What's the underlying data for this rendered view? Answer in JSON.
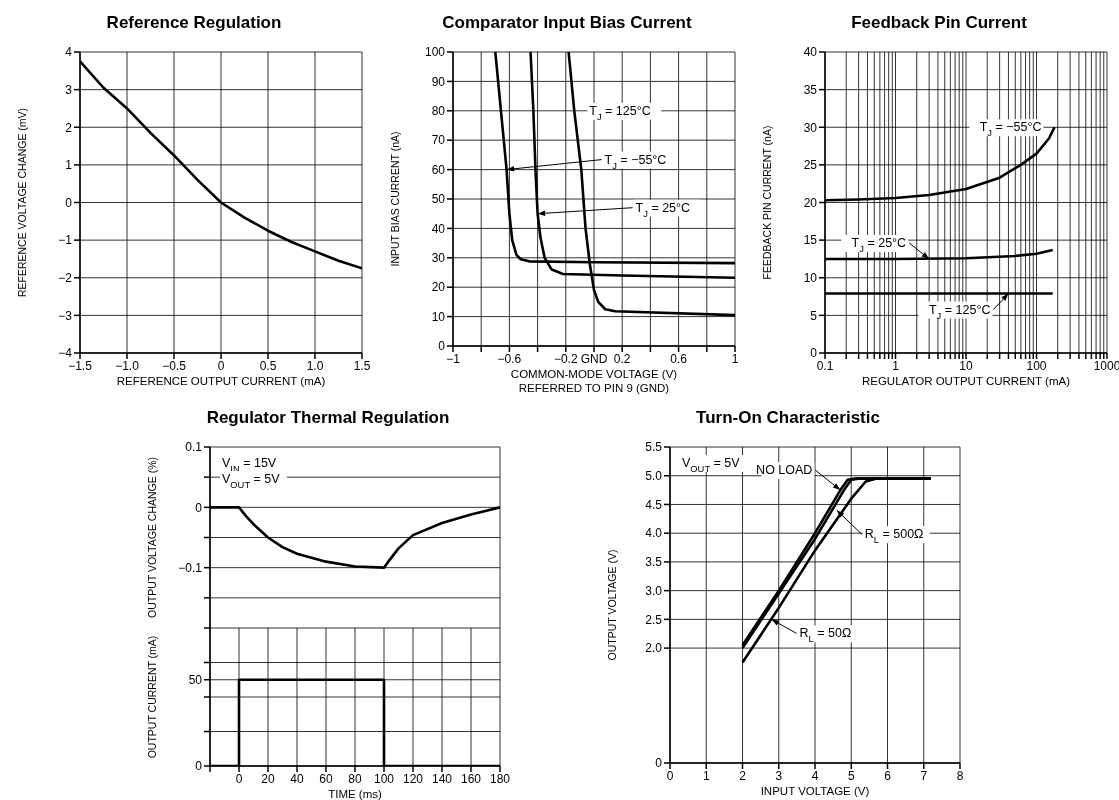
{
  "chart_data": [
    {
      "type": "line",
      "title": "Reference Regulation",
      "xlabel": "REFERENCE OUTPUT CURRENT (mA)",
      "ylabel": "REFERENCE VOLTAGE CHANGE (mV)",
      "xlim": [
        -1.5,
        1.5
      ],
      "ylim": [
        -4,
        4
      ],
      "xticks": [
        {
          "value": -1.5,
          "label": "−1.5"
        },
        {
          "value": -1,
          "label": "−1.0"
        },
        {
          "value": -0.5,
          "label": "−0.5"
        },
        0,
        0.5,
        {
          "value": 1,
          "label": "1.0"
        },
        1.5
      ],
      "yticks": [
        {
          "value": -4,
          "label": "−4"
        },
        {
          "value": -3,
          "label": "−3"
        },
        {
          "value": -2,
          "label": "−2"
        },
        {
          "value": -1,
          "label": "−1"
        },
        0,
        1,
        2,
        3,
        4
      ],
      "grid": true,
      "line_style": "solid",
      "marker": "none",
      "series": [
        {
          "color": "#000000",
          "x": [
            -1.5,
            -1.25,
            -1,
            -0.75,
            -0.5,
            -0.25,
            0,
            0.25,
            0.5,
            0.75,
            1,
            1.25,
            1.5
          ],
          "values": [
            3.75,
            3.05,
            2.5,
            1.85,
            1.25,
            0.6,
            0,
            -0.4,
            -0.75,
            -1.05,
            -1.3,
            -1.55,
            -1.75
          ]
        }
      ]
    },
    {
      "type": "line",
      "title": "Comparator Input Bias Current",
      "xlabel": "COMMON-MODE VOLTAGE (V)\nREFERRED TO PIN 9 (GND)",
      "ylabel": "INPUT BIAS CURRENT (nA)",
      "xlim": [
        -1,
        1
      ],
      "ylim": [
        0,
        100
      ],
      "xticks": [
        {
          "value": -1,
          "label": "−1"
        },
        {
          "value": -0.8,
          "label": null
        },
        {
          "value": -0.6,
          "label": "−0.6"
        },
        {
          "value": -0.4,
          "label": null
        },
        {
          "value": -0.2,
          "label": "−0.2"
        },
        {
          "value": 0,
          "label": "GND"
        },
        0.2,
        {
          "value": 0.4,
          "label": null
        },
        0.6,
        {
          "value": 0.8,
          "label": null
        },
        1
      ],
      "yticks": [
        0,
        10,
        20,
        30,
        40,
        50,
        60,
        70,
        80,
        90,
        100
      ],
      "grid": true,
      "line_style": "solid",
      "marker": "none",
      "series": [
        {
          "color": "#000000",
          "x": [
            -0.7,
            -0.66,
            -0.62,
            -0.6,
            -0.58,
            -0.55,
            -0.52,
            -0.46,
            0,
            1
          ],
          "values": [
            100,
            80,
            60,
            45,
            36,
            31,
            29.5,
            28.8,
            28.5,
            28.2
          ]
        },
        {
          "color": "#000000",
          "x": [
            -0.45,
            -0.43,
            -0.415,
            -0.4,
            -0.38,
            -0.35,
            -0.3,
            -0.22,
            0.2,
            1
          ],
          "values": [
            100,
            80,
            60,
            45,
            37,
            30,
            26,
            24.5,
            24,
            23.2
          ]
        },
        {
          "color": "#000000",
          "x": [
            -0.18,
            -0.14,
            -0.09,
            -0.06,
            -0.03,
            0,
            0.03,
            0.08,
            0.15,
            1
          ],
          "values": [
            100,
            80,
            60,
            40,
            28,
            19,
            15,
            12.5,
            11.8,
            10.5
          ]
        }
      ],
      "annotations": [
        {
          "text": "T$_{J}$ = 125°C",
          "x": -0.14,
          "y": 80
        },
        {
          "text": "T$_{J}$ = −55°C",
          "x": -0.62,
          "y": 60
        },
        {
          "text": "T$_{J}$ = 25°C",
          "x": -0.4,
          "y": 45
        }
      ]
    },
    {
      "type": "line",
      "title": "Feedback Pin Current",
      "xlabel": "REGULATOR OUTPUT CURRENT (mA)",
      "ylabel": "FEEDBACK PIN CURRENT (nA)",
      "log": "x",
      "xlim": [
        0.1,
        1000
      ],
      "ylim": [
        0,
        40
      ],
      "xticks": [
        0.1,
        {
          "value": 0.2,
          "label": null
        },
        {
          "value": 0.3,
          "label": null
        },
        {
          "value": 0.4,
          "label": null
        },
        {
          "value": 0.5,
          "label": null
        },
        {
          "value": 0.6,
          "label": null
        },
        {
          "value": 0.7,
          "label": null
        },
        {
          "value": 0.8,
          "label": null
        },
        {
          "value": 0.9,
          "label": null
        },
        1,
        {
          "value": 2,
          "label": null
        },
        {
          "value": 3,
          "label": null
        },
        {
          "value": 4,
          "label": null
        },
        {
          "value": 5,
          "label": null
        },
        {
          "value": 6,
          "label": null
        },
        {
          "value": 7,
          "label": null
        },
        {
          "value": 8,
          "label": null
        },
        {
          "value": 9,
          "label": null
        },
        10,
        {
          "value": 20,
          "label": null
        },
        {
          "value": 30,
          "label": null
        },
        {
          "value": 40,
          "label": null
        },
        {
          "value": 50,
          "label": null
        },
        {
          "value": 60,
          "label": null
        },
        {
          "value": 70,
          "label": null
        },
        {
          "value": 80,
          "label": null
        },
        {
          "value": 90,
          "label": null
        },
        100,
        {
          "value": 200,
          "label": null
        },
        {
          "value": 300,
          "label": null
        },
        {
          "value": 400,
          "label": null
        },
        {
          "value": 500,
          "label": null
        },
        {
          "value": 600,
          "label": null
        },
        {
          "value": 700,
          "label": null
        },
        {
          "value": 800,
          "label": null
        },
        {
          "value": 900,
          "label": null
        },
        1000
      ],
      "yticks": [
        0,
        5,
        10,
        15,
        20,
        25,
        30,
        35,
        40
      ],
      "grid": true,
      "line_style": "solid",
      "marker": "none",
      "series": [
        {
          "color": "#000000",
          "x": [
            0.1,
            0.3,
            1,
            3,
            10,
            30,
            60,
            100,
            150,
            180
          ],
          "values": [
            20.3,
            20.4,
            20.6,
            21,
            21.8,
            23.3,
            25,
            26.5,
            28.5,
            30
          ]
        },
        {
          "color": "#000000",
          "x": [
            0.1,
            1,
            10,
            50,
            100,
            170
          ],
          "values": [
            12.5,
            12.5,
            12.6,
            12.9,
            13.2,
            13.7
          ]
        },
        {
          "color": "#000000",
          "x": [
            0.1,
            170
          ],
          "values": [
            7.9,
            7.9
          ]
        }
      ],
      "annotations": [
        {
          "text": "T$_{J}$ = −55°C",
          "x": 180,
          "y": 30
        },
        {
          "text": "T$_{J}$ = 25°C",
          "x": 3,
          "y": 12.5
        },
        {
          "text": "T$_{J}$ = 125°C",
          "x": 40,
          "y": 7.9
        }
      ]
    },
    {
      "type": "line",
      "title": "Regulator Thermal Regulation",
      "ylabel": "OUTPUT VOLTAGE CHANGE (%)",
      "xlim": [
        -20,
        180
      ],
      "ylim": [
        -0.2,
        0.1
      ],
      "tick_labels": "y",
      "xticks": [
        {
          "value": -20,
          "label": null
        },
        0,
        20,
        40,
        60,
        80,
        100,
        120,
        140,
        160,
        180
      ],
      "yticks": [
        {
          "value": -0.2,
          "label": null
        },
        {
          "value": -0.15,
          "label": null
        },
        {
          "value": -0.1,
          "label": "−0.1"
        },
        {
          "value": -0.05,
          "label": null
        },
        0,
        {
          "value": 0.05,
          "label": null
        },
        0.1
      ],
      "grid": true,
      "line_style": "solid",
      "marker": "none",
      "series": [
        {
          "color": "#000000",
          "x": [
            -20,
            0,
            5,
            10,
            20,
            30,
            40,
            60,
            80,
            100,
            103,
            110,
            120,
            140,
            160,
            180
          ],
          "values": [
            0,
            0,
            -0.015,
            -0.028,
            -0.05,
            -0.066,
            -0.077,
            -0.09,
            -0.098,
            -0.1,
            -0.09,
            -0.068,
            -0.046,
            -0.026,
            -0.012,
            0
          ]
        }
      ],
      "annotations": [
        "V$_{IN}$ = 15V",
        "V$_{OUT}$ = 5V"
      ]
    },
    {
      "type": "line",
      "xlabel": "TIME (ms)",
      "ylabel": "OUTPUT CURRENT (mA)",
      "xlim": [
        -20,
        180
      ],
      "ylim": [
        0,
        80
      ],
      "xticks": [
        {
          "value": -20,
          "label": null
        },
        0,
        20,
        40,
        60,
        80,
        100,
        120,
        140,
        160,
        180
      ],
      "yticks": [
        0,
        {
          "value": 20,
          "label": null
        },
        {
          "value": 40,
          "label": null
        },
        50,
        {
          "value": 60,
          "label": null
        },
        {
          "value": 80,
          "label": null
        }
      ],
      "grid": true,
      "line_style": "solid",
      "marker": "none",
      "series": [
        {
          "color": "#000000",
          "x": [
            -20,
            0,
            0,
            100,
            100,
            180
          ],
          "values": [
            0,
            0,
            50,
            50,
            0,
            0
          ]
        }
      ]
    },
    {
      "type": "line",
      "title": "Turn-On Characteristic",
      "xlabel": "INPUT VOLTAGE (V)",
      "ylabel": "OUTPUT VOLTAGE (V)",
      "xlim": [
        0,
        8
      ],
      "ylim": [
        0,
        5.5
      ],
      "xticks": [
        0,
        1,
        2,
        3,
        4,
        5,
        6,
        7,
        8
      ],
      "yticks": [
        0,
        {
          "value": 2,
          "label": "2.0"
        },
        2.5,
        {
          "value": 3,
          "label": "3.0"
        },
        3.5,
        {
          "value": 4,
          "label": "4.0"
        },
        4.5,
        {
          "value": 5,
          "label": "5.0"
        },
        5.5
      ],
      "grid": true,
      "line_style": "solid",
      "marker": "none",
      "series": [
        {
          "color": "#000000",
          "x": [
            2,
            3,
            4,
            4.7,
            4.9,
            5.1,
            7.2
          ],
          "values": [
            2.05,
            3,
            4,
            4.75,
            4.93,
            4.95,
            4.95
          ]
        },
        {
          "color": "#000000",
          "x": [
            2,
            3,
            4,
            4.8,
            5,
            5.2,
            7.2
          ],
          "values": [
            2,
            2.95,
            3.9,
            4.75,
            4.93,
            4.95,
            4.95
          ]
        },
        {
          "color": "#000000",
          "x": [
            2,
            3,
            4,
            5,
            5.4,
            5.7,
            7.2
          ],
          "values": [
            1.75,
            2.7,
            3.7,
            4.6,
            4.9,
            4.95,
            4.95
          ]
        }
      ],
      "annotations": [
        "V$_{OUT}$ = 5V",
        {
          "text": "NO LOAD",
          "x": 4.7,
          "y": 4.75
        },
        {
          "text": "R$_{L}$ = 500Ω",
          "x": 4.6,
          "y": 4.4
        },
        {
          "text": "R$_{L}$ = 50Ω",
          "x": 2.8,
          "y": 2.5
        }
      ]
    }
  ]
}
